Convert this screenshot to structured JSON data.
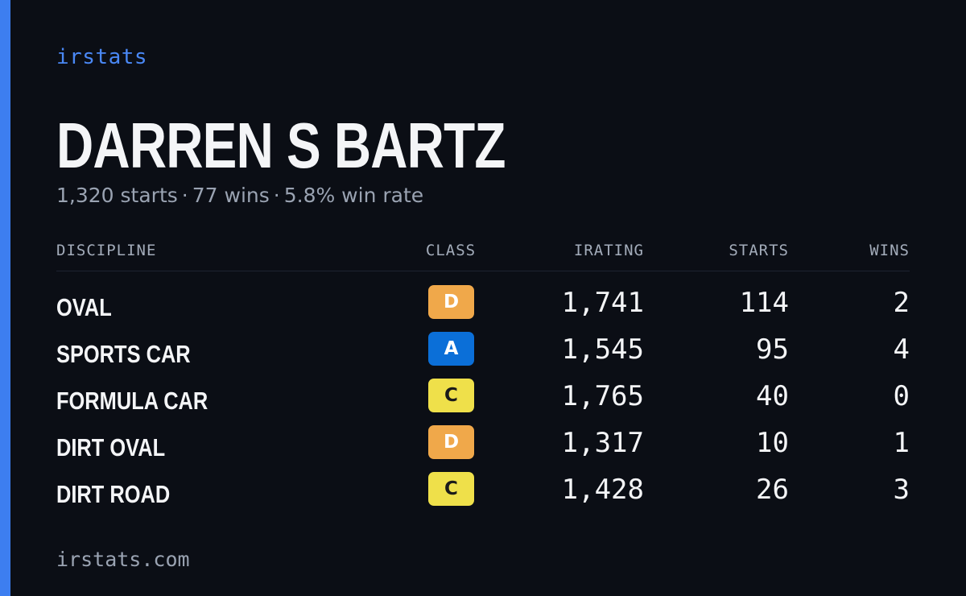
{
  "brand": "irstats",
  "driver": {
    "name": "DARREN S BARTZ",
    "starts_text": "1,320 starts",
    "wins_text": "77 wins",
    "win_rate_text": "5.8% win rate",
    "separator": "·"
  },
  "table": {
    "headers": {
      "discipline": "DISCIPLINE",
      "class": "CLASS",
      "irating": "IRATING",
      "starts": "STARTS",
      "wins": "WINS"
    },
    "rows": [
      {
        "discipline": "OVAL",
        "class": "D",
        "irating": "1,741",
        "starts": "114",
        "wins": "2"
      },
      {
        "discipline": "SPORTS CAR",
        "class": "A",
        "irating": "1,545",
        "starts": "95",
        "wins": "4"
      },
      {
        "discipline": "FORMULA CAR",
        "class": "C",
        "irating": "1,765",
        "starts": "40",
        "wins": "0"
      },
      {
        "discipline": "DIRT OVAL",
        "class": "D",
        "irating": "1,317",
        "starts": "10",
        "wins": "1"
      },
      {
        "discipline": "DIRT ROAD",
        "class": "C",
        "irating": "1,428",
        "starts": "26",
        "wins": "3"
      }
    ]
  },
  "class_colors": {
    "A": {
      "bg": "#0b6fd8",
      "fg": "#ffffff"
    },
    "C": {
      "bg": "#efe04a",
      "fg": "#1a1a1a"
    },
    "D": {
      "bg": "#f0a84a",
      "fg": "#ffffff"
    }
  },
  "accent_color": "#3d7ef0",
  "footer": "irstats.com"
}
